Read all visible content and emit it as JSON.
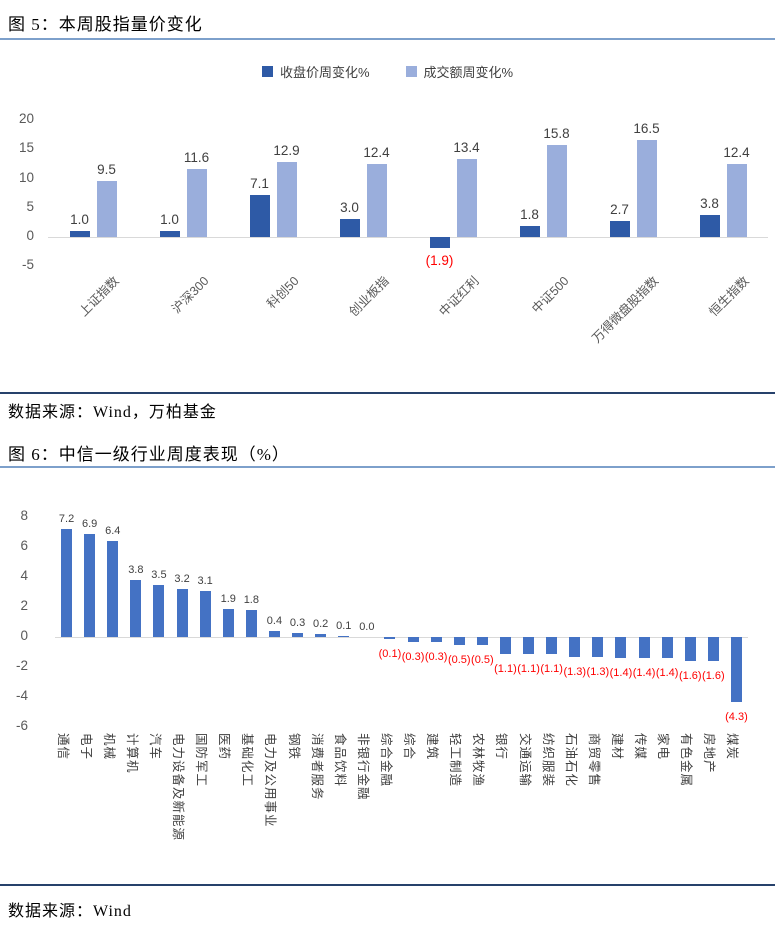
{
  "page": {
    "figure5": {
      "title": "图 5：本周股指量价变化",
      "source": "数据来源：Wind，万柏基金"
    },
    "figure6": {
      "title": "图 6：中信一级行业周度表现（%）",
      "source": "数据来源：Wind"
    }
  },
  "colors": {
    "close_series": "#2E5AA6",
    "turnover_series": "#9AAEDC",
    "industry_series": "#4472C4",
    "negative_label": "#FF0000",
    "axis_line": "#D9D9D9",
    "title_rule_blue": "#7DA0CB",
    "source_rule_dark": "#26416B"
  },
  "chart_data": [
    {
      "type": "bar",
      "figure_label": "图 5",
      "title": "本周股指量价变化",
      "categories": [
        "上证指数",
        "沪深300",
        "科创50",
        "创业板指",
        "中证红利",
        "中证500",
        "万得微盘股指数",
        "恒生指数"
      ],
      "series": [
        {
          "name": "收盘价周变化%",
          "color": "#2E5AA6",
          "values": [
            1.0,
            1.0,
            7.1,
            3.0,
            -1.9,
            1.8,
            2.7,
            3.8
          ]
        },
        {
          "name": "成交额周变化%",
          "color": "#9AAEDC",
          "values": [
            9.5,
            11.6,
            12.9,
            12.4,
            13.4,
            15.8,
            16.5,
            12.4
          ]
        }
      ],
      "ylim": [
        -5,
        20
      ],
      "yticks": [
        20,
        15,
        10,
        5,
        0,
        -5
      ],
      "grid": false,
      "legend_position": "top",
      "category_label_rotation": -45,
      "negative_label_format": "parentheses, red, below axis"
    },
    {
      "type": "bar",
      "figure_label": "图 6",
      "title": "中信一级行业周度表现（%）",
      "categories": [
        "通信",
        "电子",
        "机械",
        "计算机",
        "汽车",
        "电力设备及新能源",
        "国防军工",
        "医药",
        "基础化工",
        "电力及公用事业",
        "钢铁",
        "消费者服务",
        "食品饮料",
        "非银行金融",
        "综合金融",
        "综合",
        "建筑",
        "轻工制造",
        "农林牧渔",
        "银行",
        "交通运输",
        "纺织服装",
        "石油石化",
        "商贸零售",
        "建材",
        "传媒",
        "家电",
        "有色金属",
        "房地产",
        "煤炭"
      ],
      "values": [
        7.2,
        6.9,
        6.4,
        3.8,
        3.5,
        3.2,
        3.1,
        1.9,
        1.8,
        0.4,
        0.3,
        0.2,
        0.1,
        0.0,
        -0.1,
        -0.3,
        -0.3,
        -0.5,
        -0.5,
        -1.1,
        -1.1,
        -1.1,
        -1.3,
        -1.3,
        -1.4,
        -1.4,
        -1.4,
        -1.6,
        -1.6,
        -4.3
      ],
      "color": "#4472C4",
      "ylim": [
        -6,
        8
      ],
      "yticks": [
        8,
        6,
        4,
        2,
        0,
        -2,
        -4,
        -6
      ],
      "grid": false,
      "legend_position": "none",
      "category_label_rotation": 90,
      "negative_label_format": "parentheses, red, below bar"
    }
  ]
}
